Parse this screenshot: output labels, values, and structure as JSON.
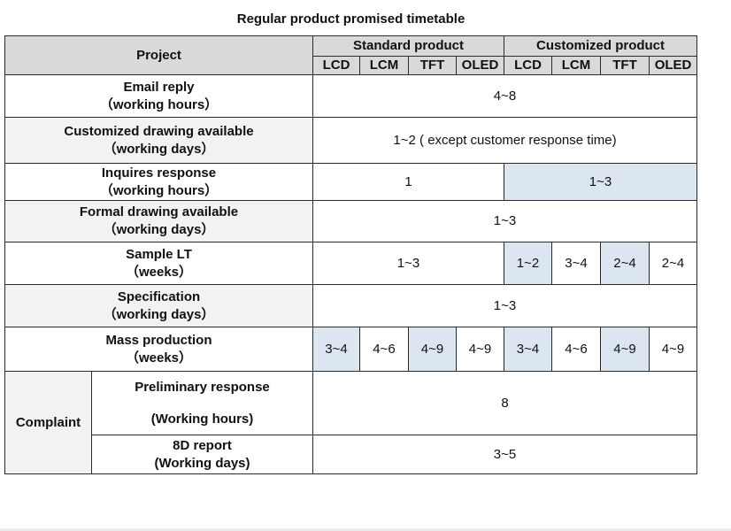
{
  "title": "Regular product promised timetable",
  "header": {
    "project": "Project",
    "standard": "Standard product",
    "customized": "Customized product",
    "sub_cols": [
      "LCD",
      "LCM",
      "TFT",
      "OLED",
      "LCD",
      "LCM",
      "TFT",
      "OLED"
    ]
  },
  "rows": {
    "email": {
      "label1": "Email reply",
      "label2": "（working hours）",
      "value": "4~8"
    },
    "custom_drawing": {
      "label1": "Customized drawing available",
      "label2": "（working days）",
      "value": "1~2 ( except customer response time)"
    },
    "inquires": {
      "label1": "Inquires response",
      "label2": "（working hours）",
      "standard": "1",
      "customized": "1~3"
    },
    "formal_drawing": {
      "label1": "Formal drawing available",
      "label2": "（working days）",
      "value": "1~3"
    },
    "sample": {
      "label1": "Sample LT",
      "label2": "（weeks）",
      "standard": "1~3",
      "customized": [
        "1~2",
        "3~4",
        "2~4",
        "2~4"
      ]
    },
    "specification": {
      "label1": "Specification",
      "label2": "（working days）",
      "value": "1~3"
    },
    "mass": {
      "label1": "Mass production",
      "label2": "（weeks）",
      "values": [
        "3~4",
        "4~6",
        "4~9",
        "4~9",
        "3~4",
        "4~6",
        "4~9",
        "4~9"
      ]
    },
    "complaint": {
      "label": "Complaint",
      "preliminary": {
        "label1": "Preliminary response",
        "label2": "(Working hours)",
        "value": "8"
      },
      "report": {
        "label1": "8D report",
        "label2": "(Working days)",
        "value": "3~5"
      }
    }
  },
  "colors": {
    "header_gray": "#d9d9d9",
    "label_gray": "#f2f2f2",
    "highlight_blue": "#dce6f1",
    "border": "#2a2a2a"
  }
}
